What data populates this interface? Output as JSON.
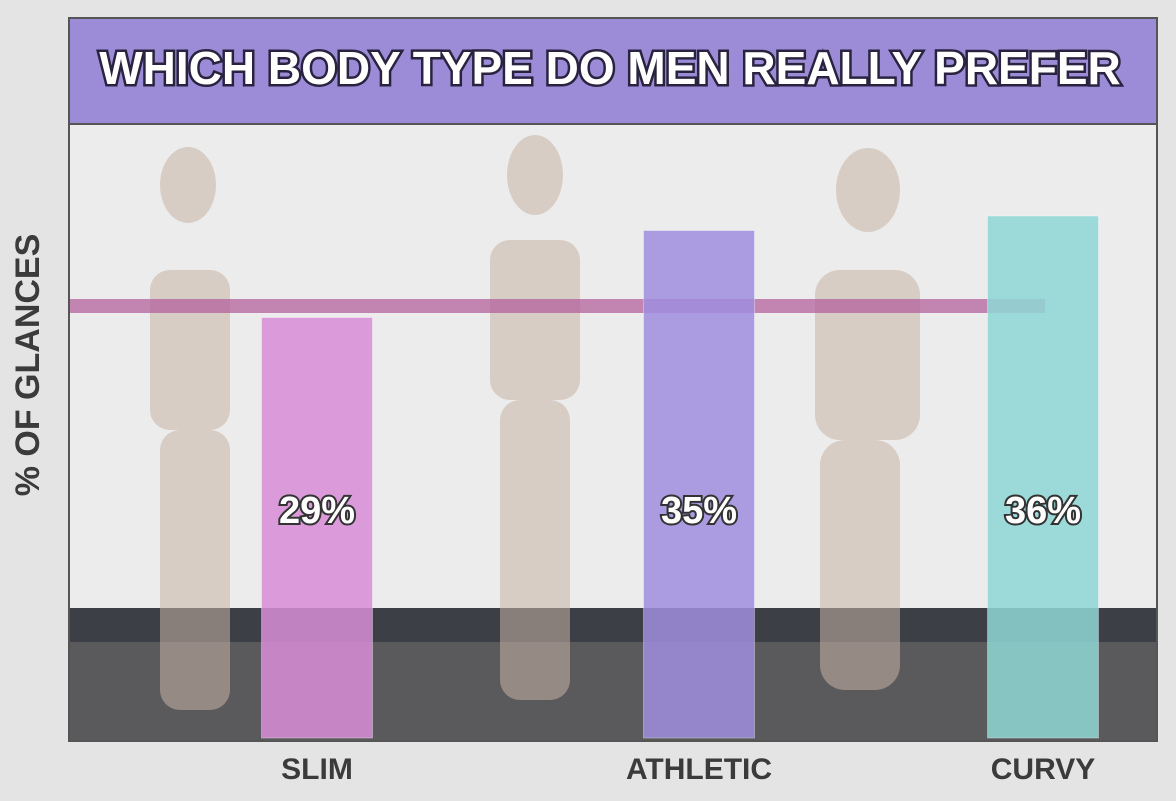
{
  "chart_data": {
    "type": "bar",
    "title": "WHICH BODY TYPE DO MEN REALLY PREFER",
    "y_label": "% OF GLANCES",
    "categories": [
      "SLIM",
      "ATHLETIC",
      "CURVY"
    ],
    "series": [
      {
        "name": null,
        "colors": [
          "#d98ed8",
          "#a08ee0",
          "#8fd8d6"
        ],
        "values": [
          29,
          35,
          36
        ],
        "value_labels": [
          "29%",
          "35%",
          "36%"
        ]
      }
    ]
  }
}
